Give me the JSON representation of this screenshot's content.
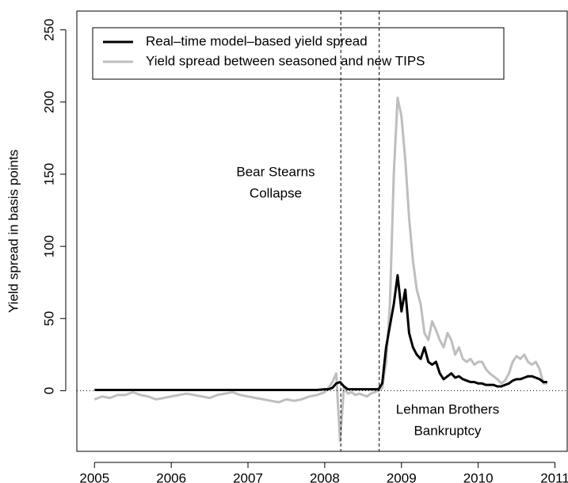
{
  "chart_data": {
    "type": "line",
    "ylabel": "Yield spread in basis points",
    "x": [
      2005.0,
      2005.1,
      2005.2,
      2005.3,
      2005.4,
      2005.5,
      2005.6,
      2005.7,
      2005.8,
      2005.9,
      2006.0,
      2006.1,
      2006.2,
      2006.3,
      2006.4,
      2006.5,
      2006.6,
      2006.7,
      2006.8,
      2006.9,
      2007.0,
      2007.1,
      2007.2,
      2007.3,
      2007.4,
      2007.5,
      2007.6,
      2007.7,
      2007.8,
      2007.9,
      2008.0,
      2008.05,
      2008.1,
      2008.15,
      2008.2,
      2008.25,
      2008.3,
      2008.35,
      2008.4,
      2008.45,
      2008.5,
      2008.55,
      2008.6,
      2008.65,
      2008.7,
      2008.75,
      2008.8,
      2008.85,
      2008.9,
      2008.95,
      2009.0,
      2009.05,
      2009.1,
      2009.15,
      2009.2,
      2009.25,
      2009.3,
      2009.35,
      2009.4,
      2009.45,
      2009.5,
      2009.55,
      2009.6,
      2009.65,
      2009.7,
      2009.75,
      2009.8,
      2009.85,
      2009.9,
      2009.95,
      2010.0,
      2010.05,
      2010.1,
      2010.15,
      2010.2,
      2010.25,
      2010.3,
      2010.35,
      2010.4,
      2010.45,
      2010.5,
      2010.55,
      2010.6,
      2010.65,
      2010.7,
      2010.75,
      2010.8,
      2010.85,
      2010.9
    ],
    "series": [
      {
        "name": "Yield spread between seasoned and new TIPS",
        "color": "#bebebe",
        "values": [
          -6,
          -4,
          -5,
          -3,
          -3,
          -1,
          -3,
          -4,
          -6,
          -5,
          -4,
          -3,
          -2,
          -3,
          -4,
          -5,
          -3,
          -2,
          -1,
          -3,
          -4,
          -5,
          -6,
          -7,
          -8,
          -6,
          -7,
          -6,
          -4,
          -3,
          -1,
          2,
          6,
          12,
          -35,
          2,
          -2,
          -1,
          -3,
          -2,
          -3,
          -4,
          -2,
          -1,
          0,
          2,
          20,
          60,
          150,
          203,
          190,
          160,
          120,
          90,
          70,
          60,
          40,
          35,
          48,
          42,
          35,
          30,
          40,
          35,
          25,
          30,
          22,
          20,
          22,
          18,
          20,
          20,
          15,
          12,
          10,
          8,
          5,
          7,
          12,
          20,
          24,
          22,
          25,
          20,
          18,
          20,
          15,
          5,
          5
        ]
      },
      {
        "name": "Real–time model–based yield spread",
        "color": "#000000",
        "values": [
          0.5,
          0.5,
          0.5,
          0.5,
          0.5,
          0.5,
          0.5,
          0.5,
          0.5,
          0.5,
          0.5,
          0.5,
          0.5,
          0.5,
          0.5,
          0.5,
          0.5,
          0.5,
          0.5,
          0.5,
          0.5,
          0.5,
          0.5,
          0.5,
          0.5,
          0.5,
          0.5,
          0.5,
          0.5,
          0.5,
          1,
          1,
          2,
          5,
          6,
          3,
          1,
          1,
          1,
          1,
          1,
          1,
          1,
          1,
          1,
          5,
          30,
          45,
          60,
          80,
          55,
          70,
          40,
          30,
          25,
          22,
          30,
          20,
          18,
          20,
          12,
          8,
          10,
          12,
          9,
          10,
          8,
          7,
          6,
          6,
          5,
          5,
          4,
          4,
          4,
          3,
          3,
          4,
          5,
          7,
          8,
          8,
          9,
          10,
          10,
          9,
          8,
          6,
          6
        ]
      }
    ],
    "legend_order": [
      1,
      0
    ],
    "legend_position": "top-left",
    "reference_line": 0,
    "events": [
      {
        "x": 2008.21,
        "label": [
          "Bear Stearns",
          "Collapse"
        ]
      },
      {
        "x": 2008.71,
        "label": [
          "Lehman Brothers",
          "Bankruptcy"
        ]
      }
    ],
    "xlim": [
      2004.77,
      2011.16
    ],
    "xticks": [
      2005,
      2006,
      2007,
      2008,
      2009,
      2010,
      2011
    ],
    "ylim": [
      -42,
      263
    ],
    "yticks": [
      0,
      50,
      100,
      150,
      200,
      250
    ]
  }
}
